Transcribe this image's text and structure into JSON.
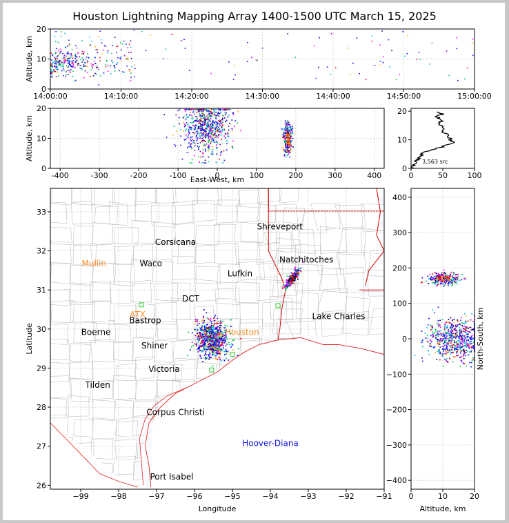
{
  "title": "Houston Lightning Mapping Array 1400-1500 UTC March 15, 2025",
  "colors": {
    "coast": "#e02020",
    "state": "#d00000",
    "county": "#c0c0c0",
    "ctLabel": "#ff8c2a",
    "hoover": "#1010e0"
  },
  "chart_data": [
    {
      "name": "time-altitude",
      "type": "scatter",
      "xlabel": "",
      "ylabel": "Altitude, km",
      "xticks": [
        "14:00:00",
        "14:10:00",
        "14:20:00",
        "14:30:00",
        "14:40:00",
        "14:50:00",
        "15:00:00"
      ],
      "yticks": [
        0,
        10,
        20
      ],
      "ylim": [
        0,
        20
      ],
      "grid": true
    },
    {
      "name": "east-west-altitude",
      "type": "scatter",
      "xlabel": "East-West, km",
      "ylabel": "Altitude, km",
      "xticks": [
        -400,
        -300,
        -200,
        -100,
        0,
        100,
        200,
        300,
        400
      ],
      "yticks": [
        0,
        10,
        20
      ],
      "xlim": [
        -425,
        425
      ],
      "ylim": [
        0,
        20
      ],
      "grid": true,
      "clusters": [
        {
          "x_center": -30,
          "x_spread": 45,
          "alt_center": 12,
          "alt_spread": 8
        },
        {
          "x_center": 178,
          "x_spread": 8,
          "alt_center": 10,
          "alt_spread": 3
        }
      ]
    },
    {
      "name": "altitude-histogram",
      "type": "line",
      "xticks": [
        0,
        50,
        100
      ],
      "yticks": [
        0,
        10,
        20
      ],
      "xlim": [
        0,
        100
      ],
      "ylim": [
        0,
        21
      ],
      "annotation": "3,563 src",
      "profile": [
        [
          2,
          0
        ],
        [
          3,
          1
        ],
        [
          5,
          2
        ],
        [
          10,
          3
        ],
        [
          12,
          4
        ],
        [
          18,
          5
        ],
        [
          25,
          6
        ],
        [
          40,
          7
        ],
        [
          55,
          8
        ],
        [
          70,
          9
        ],
        [
          62,
          10
        ],
        [
          58,
          11
        ],
        [
          55,
          12
        ],
        [
          50,
          13
        ],
        [
          52,
          14
        ],
        [
          47,
          15
        ],
        [
          45,
          16
        ],
        [
          50,
          17
        ],
        [
          42,
          18
        ],
        [
          48,
          19
        ],
        [
          40,
          20
        ]
      ]
    },
    {
      "name": "plan-view",
      "type": "scatter",
      "xlabel": "Longitude",
      "ylabel": "Latitude",
      "xticks": [
        -99,
        -98,
        -97,
        -96,
        -95,
        -94,
        -93,
        -92,
        -91
      ],
      "yticks": [
        26,
        27,
        28,
        29,
        30,
        31,
        32,
        33
      ],
      "xlim": [
        -99.8,
        -91.0
      ],
      "ylim": [
        25.9,
        33.6
      ],
      "grid": true,
      "clusters": [
        {
          "lon": -95.55,
          "lat": 29.75,
          "spread": 0.28
        },
        {
          "lon": -93.45,
          "lat": 31.3,
          "spread": 0.12
        }
      ]
    },
    {
      "name": "altitude-north-south",
      "type": "scatter",
      "xlabel": "Altitude, km",
      "ylabel": "North-South, km",
      "xticks": [
        0,
        10,
        20
      ],
      "yticks": [
        -400,
        -300,
        -200,
        -100,
        0,
        100,
        200,
        300,
        400
      ],
      "xlim": [
        0,
        20
      ],
      "ylim": [
        -425,
        425
      ],
      "grid": true
    }
  ],
  "cities": [
    {
      "name": "Shreveport",
      "lon": -93.75,
      "lat": 32.55,
      "color": "#000000"
    },
    {
      "name": "Corsicana",
      "lon": -96.5,
      "lat": 32.15,
      "color": "#000000"
    },
    {
      "name": "Mullin",
      "lon": -98.65,
      "lat": 31.6,
      "color": "#ff8c2a"
    },
    {
      "name": "Waco",
      "lon": -97.15,
      "lat": 31.6,
      "color": "#000000"
    },
    {
      "name": "Natchitoches",
      "lon": -93.05,
      "lat": 31.7,
      "color": "#000000"
    },
    {
      "name": "Lufkin",
      "lon": -94.8,
      "lat": 31.35,
      "color": "#000000"
    },
    {
      "name": "DCT",
      "lon": -96.1,
      "lat": 30.7,
      "color": "#000000"
    },
    {
      "name": "ATX",
      "lon": -97.5,
      "lat": 30.3,
      "color": "#ff8c2a"
    },
    {
      "name": "Bastrop",
      "lon": -97.3,
      "lat": 30.15,
      "color": "#000000"
    },
    {
      "name": "Lake Charles",
      "lon": -92.2,
      "lat": 30.25,
      "color": "#000000"
    },
    {
      "name": "Boerne",
      "lon": -98.6,
      "lat": 29.85,
      "color": "#000000"
    },
    {
      "name": "Houston",
      "lon": -94.75,
      "lat": 29.85,
      "color": "#ff8c2a"
    },
    {
      "name": "Shiner",
      "lon": -97.05,
      "lat": 29.5,
      "color": "#000000"
    },
    {
      "name": "Victoria",
      "lon": -96.8,
      "lat": 28.9,
      "color": "#000000"
    },
    {
      "name": "Tilden",
      "lon": -98.55,
      "lat": 28.5,
      "color": "#000000"
    },
    {
      "name": "Corpus Christi",
      "lon": -96.5,
      "lat": 27.8,
      "color": "#000000"
    },
    {
      "name": "Hoover-Diana",
      "lon": -94.0,
      "lat": 27.0,
      "color": "#1010e0"
    },
    {
      "name": "Port Isabel",
      "lon": -96.6,
      "lat": 26.15,
      "color": "#000000"
    }
  ]
}
